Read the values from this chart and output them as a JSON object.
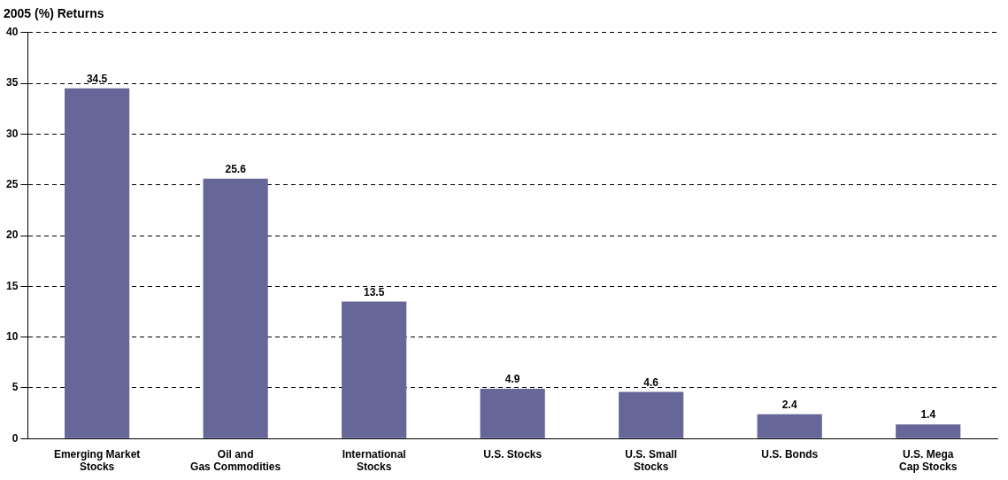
{
  "chart_data": {
    "type": "bar",
    "title": "2005 (%) Returns",
    "categories": [
      "Emerging Market Stocks",
      "Oil and Gas Commodities",
      "International Stocks",
      "U.S. Stocks",
      "U.S. Small Stocks",
      "U.S. Bonds",
      "U.S. Mega Cap Stocks"
    ],
    "values": [
      34.5,
      25.6,
      13.5,
      4.9,
      4.6,
      2.4,
      1.4
    ],
    "color": "#666699",
    "ylim": [
      0,
      40
    ],
    "yticks": [
      0,
      5,
      10,
      15,
      20,
      25,
      30,
      35,
      40
    ],
    "grid": "y",
    "line_style": "dashed",
    "data_labels": true,
    "legend": false
  }
}
